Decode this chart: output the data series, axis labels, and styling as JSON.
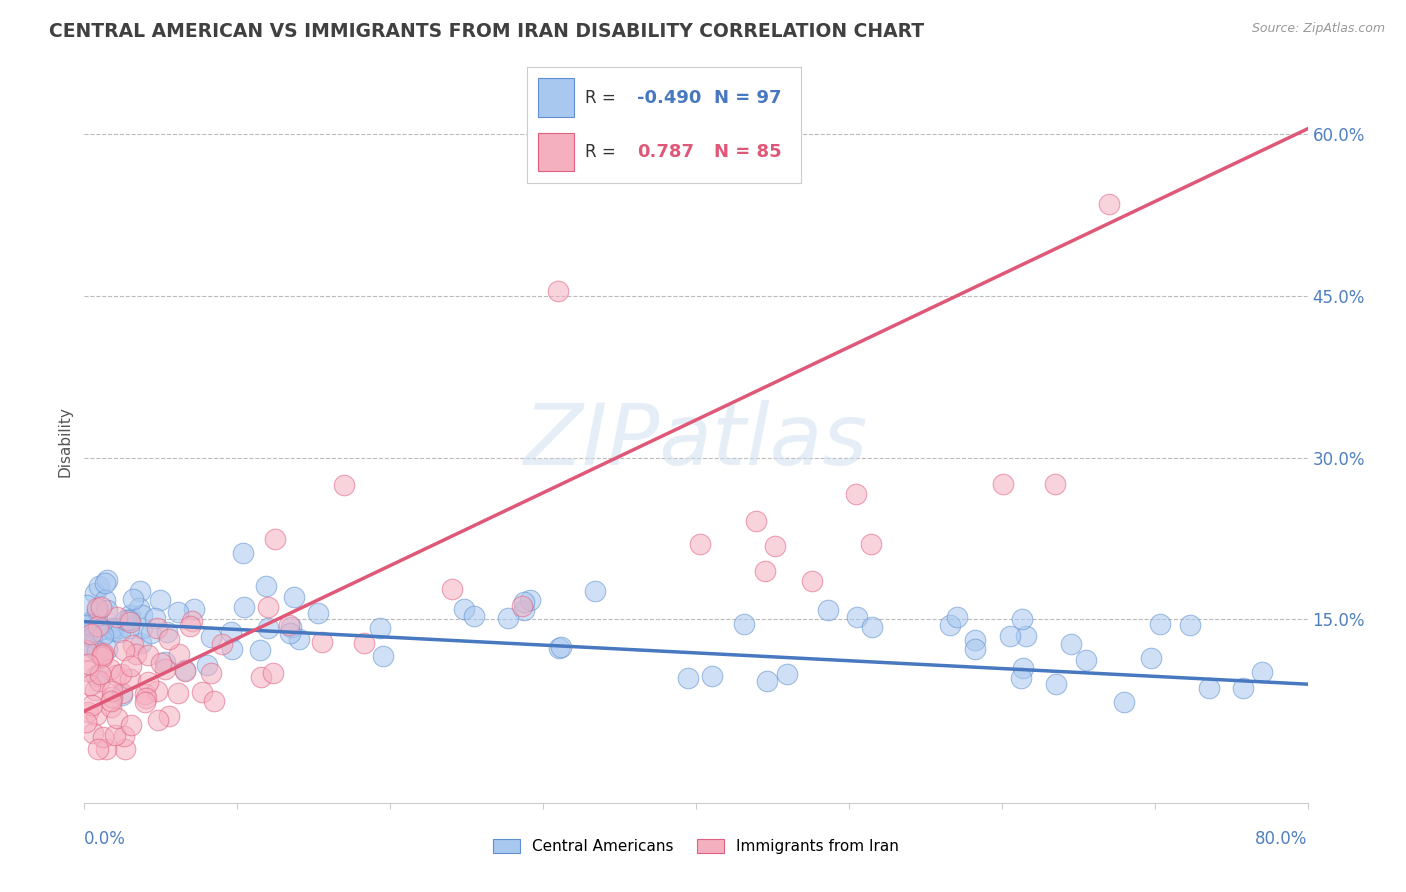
{
  "title": "CENTRAL AMERICAN VS IMMIGRANTS FROM IRAN DISABILITY CORRELATION CHART",
  "source": "Source: ZipAtlas.com",
  "ylabel": "Disability",
  "xmin": 0.0,
  "xmax": 0.8,
  "ymin": -0.02,
  "ymax": 0.65,
  "blue_R": -0.49,
  "blue_N": 97,
  "pink_R": 0.787,
  "pink_N": 85,
  "blue_color": "#A8C8F0",
  "pink_color": "#F5B0C0",
  "blue_edge_color": "#6090D0",
  "pink_edge_color": "#E06080",
  "blue_line_color": "#4878C0",
  "pink_line_color": "#E05878",
  "legend_blue_label": "Central Americans",
  "legend_pink_label": "Immigrants from Iran",
  "watermark": "ZIPatlas",
  "background_color": "#ffffff",
  "grid_color": "#bbbbbb",
  "title_color": "#404040",
  "axis_label_color": "#5080C0",
  "blue_trend_start_y": 0.148,
  "blue_trend_end_y": 0.09,
  "pink_trend_start_y": 0.065,
  "pink_trend_end_y": 0.605
}
